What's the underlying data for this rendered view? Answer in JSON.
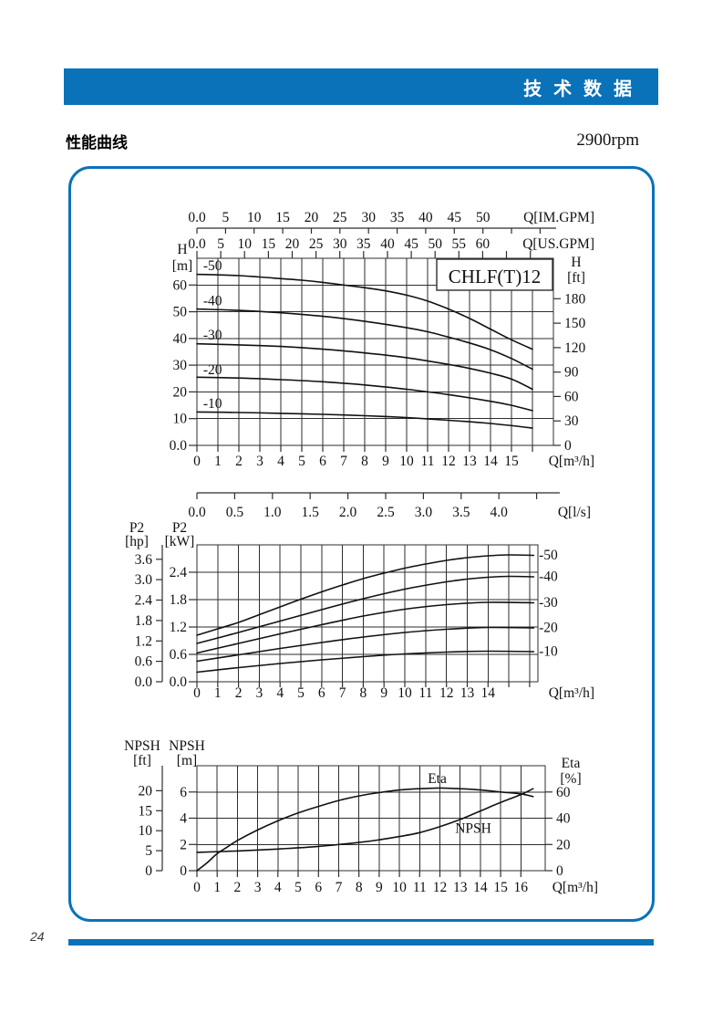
{
  "page": {
    "header_title": "技 术 数 据",
    "section_title": "性能曲线",
    "speed_label": "2900rpm",
    "page_number": "24"
  },
  "colors": {
    "brand_blue": "#0a72b9",
    "grid_black": "#2e2e2e",
    "curve_black": "#111111",
    "text_black": "#111111"
  },
  "chart_data": [
    {
      "id": "head-flow",
      "type": "line",
      "title": "CHLF(T)12",
      "x_axis": {
        "unit_label": "Q[m³/h]",
        "min": 0,
        "max": 17,
        "grid_max": 16,
        "tick_labels": [
          "0",
          "1",
          "2",
          "3",
          "4",
          "5",
          "6",
          "7",
          "8",
          "9",
          "10",
          "11",
          "12",
          "13",
          "14",
          "15"
        ]
      },
      "y_axis": {
        "name": "H",
        "unit": "[m]",
        "min": 0,
        "max": 70,
        "tick_values": [
          0,
          10,
          20,
          30,
          40,
          50,
          60
        ],
        "ticks": [
          "0.0",
          "10",
          "20",
          "30",
          "40",
          "50",
          "60"
        ]
      },
      "y_axis_right": {
        "name": "H",
        "unit": "[ft]",
        "per_unit": 0.3048,
        "tick_values": [
          0,
          30,
          60,
          90,
          120,
          150,
          180
        ],
        "tick_labels": [
          "0",
          "30",
          "60",
          "90",
          "120",
          "150",
          "180"
        ]
      },
      "top_axes": [
        {
          "unit_label": "Q[IM.GPM]",
          "per_unit": 0.27276,
          "tick_values": [
            0,
            5,
            10,
            15,
            20,
            25,
            30,
            35,
            40,
            45,
            50,
            55,
            60
          ],
          "tick_labels": [
            "0.0",
            "5",
            "10",
            "15",
            "20",
            "25",
            "30",
            "35",
            "40",
            "45",
            "50",
            "",
            ""
          ]
        },
        {
          "unit_label": "Q[US.GPM]",
          "per_unit": 0.22712,
          "tick_values": [
            0,
            5,
            10,
            15,
            20,
            25,
            30,
            35,
            40,
            45,
            50,
            55,
            60,
            65,
            70
          ],
          "tick_labels": [
            "0.0",
            "5",
            "10",
            "15",
            "20",
            "25",
            "30",
            "35",
            "40",
            "45",
            "50",
            "55",
            "60",
            "",
            ""
          ]
        }
      ],
      "bottom_axes": [
        {
          "unit_label": "Q[l/s]",
          "per_unit": 3.6,
          "tick_values": [
            0,
            0.5,
            1,
            1.5,
            2,
            2.5,
            3,
            3.5,
            4,
            4.5
          ],
          "tick_labels": [
            "0.0",
            "0.5",
            "1.0",
            "1.5",
            "2.0",
            "2.5",
            "3.0",
            "3.5",
            "4.0",
            ""
          ]
        }
      ],
      "series": [
        {
          "name": "-50",
          "label": {
            "x": 0.3,
            "y": 65.6,
            "anchor": "start"
          },
          "points": [
            [
              0,
              64
            ],
            [
              1,
              63.8
            ],
            [
              2,
              63.5
            ],
            [
              3,
              63
            ],
            [
              4,
              62.4
            ],
            [
              5,
              61.8
            ],
            [
              6,
              61
            ],
            [
              7,
              60
            ],
            [
              8,
              59
            ],
            [
              9,
              57.8
            ],
            [
              10,
              56.2
            ],
            [
              11,
              54
            ],
            [
              12,
              51
            ],
            [
              13,
              47.5
            ],
            [
              14,
              43.5
            ],
            [
              15,
              39.5
            ],
            [
              16,
              36
            ]
          ]
        },
        {
          "name": "-40",
          "label": {
            "x": 0.3,
            "y": 52.4,
            "anchor": "start"
          },
          "points": [
            [
              0,
              51
            ],
            [
              2,
              50.5
            ],
            [
              4,
              49.6
            ],
            [
              6,
              48.3
            ],
            [
              8,
              46.4
            ],
            [
              10,
              44
            ],
            [
              11,
              42.5
            ],
            [
              12,
              40.5
            ],
            [
              13,
              38.3
            ],
            [
              14,
              35.8
            ],
            [
              15,
              32.5
            ],
            [
              16,
              28.5
            ]
          ]
        },
        {
          "name": "-30",
          "label": {
            "x": 0.3,
            "y": 39.6,
            "anchor": "start"
          },
          "points": [
            [
              0,
              38
            ],
            [
              2,
              37.6
            ],
            [
              4,
              37
            ],
            [
              6,
              36
            ],
            [
              8,
              34.6
            ],
            [
              10,
              32.8
            ],
            [
              12,
              30.3
            ],
            [
              13,
              28.8
            ],
            [
              14,
              27
            ],
            [
              15,
              24.8
            ],
            [
              16,
              21
            ]
          ]
        },
        {
          "name": "-20",
          "label": {
            "x": 0.3,
            "y": 26.7,
            "anchor": "start"
          },
          "points": [
            [
              0,
              25.5
            ],
            [
              2,
              25.2
            ],
            [
              4,
              24.6
            ],
            [
              6,
              23.8
            ],
            [
              8,
              22.6
            ],
            [
              10,
              21
            ],
            [
              12,
              19
            ],
            [
              14,
              16.5
            ],
            [
              15,
              15
            ],
            [
              16,
              13
            ]
          ]
        },
        {
          "name": "-10",
          "label": {
            "x": 0.3,
            "y": 14.0,
            "anchor": "start"
          },
          "points": [
            [
              0,
              12.5
            ],
            [
              2,
              12.3
            ],
            [
              4,
              12
            ],
            [
              6,
              11.6
            ],
            [
              8,
              11.1
            ],
            [
              10,
              10.4
            ],
            [
              12,
              9.4
            ],
            [
              14,
              8.2
            ],
            [
              16,
              6.5
            ]
          ]
        }
      ]
    },
    {
      "id": "power-flow",
      "type": "line",
      "x_axis": {
        "unit_label": "Q[m³/h]",
        "min": 0,
        "max": 16.4,
        "grid_max": 16,
        "tick_labels": [
          "0",
          "1",
          "2",
          "3",
          "4",
          "5",
          "6",
          "7",
          "8",
          "9",
          "10",
          "11",
          "12",
          "13",
          "14"
        ]
      },
      "y_axis": {
        "name": "P2",
        "unit": "[kW]",
        "min": 0,
        "max": 3.0,
        "tick_values": [
          0,
          0.6,
          1.2,
          1.8,
          2.4
        ],
        "ticks": [
          "0.0",
          "0.6",
          "1.2",
          "1.8",
          "2.4"
        ]
      },
      "y_axis_left2": {
        "name": "P2",
        "unit": "[hp]",
        "per_unit": 0.7457,
        "tick_values": [
          0,
          0.6,
          1.2,
          1.8,
          2.4,
          3.0,
          3.6
        ],
        "tick_labels": [
          "0.0",
          "0.6",
          "1.2",
          "1.8",
          "2.4",
          "3.0",
          "3.6"
        ]
      },
      "series": [
        {
          "name": "-50",
          "label": {
            "x": 16.45,
            "y": 2.68,
            "anchor": "start"
          },
          "points": [
            [
              0,
              1.02
            ],
            [
              1,
              1.16
            ],
            [
              2,
              1.3
            ],
            [
              3,
              1.47
            ],
            [
              4,
              1.64
            ],
            [
              5,
              1.81
            ],
            [
              6,
              1.97
            ],
            [
              7,
              2.12
            ],
            [
              8,
              2.26
            ],
            [
              9,
              2.38
            ],
            [
              10,
              2.49
            ],
            [
              11,
              2.58
            ],
            [
              12,
              2.66
            ],
            [
              13,
              2.72
            ],
            [
              14,
              2.76
            ],
            [
              15,
              2.78
            ],
            [
              16.2,
              2.77
            ]
          ]
        },
        {
          "name": "-40",
          "label": {
            "x": 16.45,
            "y": 2.21,
            "anchor": "start"
          },
          "points": [
            [
              0,
              0.84
            ],
            [
              2,
              1.08
            ],
            [
              4,
              1.33
            ],
            [
              6,
              1.58
            ],
            [
              8,
              1.82
            ],
            [
              10,
              2.03
            ],
            [
              12,
              2.19
            ],
            [
              13,
              2.25
            ],
            [
              14,
              2.29
            ],
            [
              15,
              2.31
            ],
            [
              16.2,
              2.3
            ]
          ]
        },
        {
          "name": "-30",
          "label": {
            "x": 16.45,
            "y": 1.64,
            "anchor": "start"
          },
          "points": [
            [
              0,
              0.63
            ],
            [
              2,
              0.84
            ],
            [
              4,
              1.05
            ],
            [
              6,
              1.25
            ],
            [
              8,
              1.44
            ],
            [
              10,
              1.59
            ],
            [
              12,
              1.69
            ],
            [
              14,
              1.74
            ],
            [
              16.2,
              1.73
            ]
          ]
        },
        {
          "name": "-20",
          "label": {
            "x": 16.45,
            "y": 1.09,
            "anchor": "start"
          },
          "points": [
            [
              0,
              0.45
            ],
            [
              2,
              0.59
            ],
            [
              4,
              0.73
            ],
            [
              6,
              0.86
            ],
            [
              8,
              0.98
            ],
            [
              10,
              1.08
            ],
            [
              12,
              1.15
            ],
            [
              14,
              1.19
            ],
            [
              16.2,
              1.18
            ]
          ]
        },
        {
          "name": "-10",
          "label": {
            "x": 16.45,
            "y": 0.57,
            "anchor": "start"
          },
          "points": [
            [
              0,
              0.21
            ],
            [
              2,
              0.31
            ],
            [
              4,
              0.4
            ],
            [
              6,
              0.48
            ],
            [
              8,
              0.55
            ],
            [
              10,
              0.61
            ],
            [
              12,
              0.65
            ],
            [
              14,
              0.67
            ],
            [
              16.2,
              0.66
            ]
          ]
        }
      ]
    },
    {
      "id": "npsh-eta-flow",
      "type": "line",
      "x_axis": {
        "unit_label": "Q[m³/h]",
        "min": 0,
        "max": 17.2,
        "grid_max": 16,
        "tick_labels": [
          "0",
          "1",
          "2",
          "3",
          "4",
          "5",
          "6",
          "7",
          "8",
          "9",
          "10",
          "11",
          "12",
          "13",
          "14",
          "15",
          "16"
        ]
      },
      "y_axis": {
        "name": "NPSH",
        "unit": "[m]",
        "min": 0,
        "max": 8,
        "tick_values": [
          0,
          2,
          4,
          6
        ],
        "ticks": [
          "0",
          "2",
          "4",
          "6"
        ]
      },
      "y_axis_left2": {
        "name": "NPSH",
        "unit": "[ft]",
        "per_unit": 0.3048,
        "tick_values": [
          0,
          5,
          10,
          15,
          20
        ],
        "tick_labels": [
          "0",
          "5",
          "10",
          "15",
          "20"
        ]
      },
      "y_axis_right": {
        "name": "Eta",
        "unit": "[%]",
        "per_unit": 0.1,
        "tick_values": [
          0,
          20,
          40,
          60
        ],
        "tick_labels": [
          "0",
          "20",
          "40",
          "60"
        ]
      },
      "series": [
        {
          "name": "Eta",
          "axis": "right",
          "label": {
            "x": 11.4,
            "y": 66.8,
            "anchor": "start"
          },
          "points": [
            [
              0,
              0
            ],
            [
              0.5,
              6
            ],
            [
              1,
              13
            ],
            [
              1.5,
              18
            ],
            [
              2,
              23
            ],
            [
              3,
              31
            ],
            [
              4,
              38
            ],
            [
              5,
              44
            ],
            [
              6,
              49
            ],
            [
              7,
              53.5
            ],
            [
              8,
              57
            ],
            [
              9,
              59.5
            ],
            [
              10,
              61.5
            ],
            [
              11,
              62.5
            ],
            [
              12,
              63
            ],
            [
              13,
              62.5
            ],
            [
              14,
              61.5
            ],
            [
              15,
              60
            ],
            [
              16,
              58.5
            ],
            [
              16.6,
              56.5
            ]
          ]
        },
        {
          "name": "NPSH",
          "label": {
            "x": 12.75,
            "y": 2.9,
            "anchor": "start"
          },
          "points": [
            [
              0,
              1.4
            ],
            [
              2,
              1.5
            ],
            [
              4,
              1.65
            ],
            [
              6,
              1.85
            ],
            [
              8,
              2.15
            ],
            [
              9,
              2.35
            ],
            [
              10,
              2.6
            ],
            [
              11,
              2.9
            ],
            [
              12,
              3.35
            ],
            [
              13,
              3.9
            ],
            [
              14,
              4.55
            ],
            [
              15,
              5.2
            ],
            [
              16,
              5.8
            ],
            [
              16.6,
              6.25
            ]
          ]
        }
      ]
    }
  ]
}
